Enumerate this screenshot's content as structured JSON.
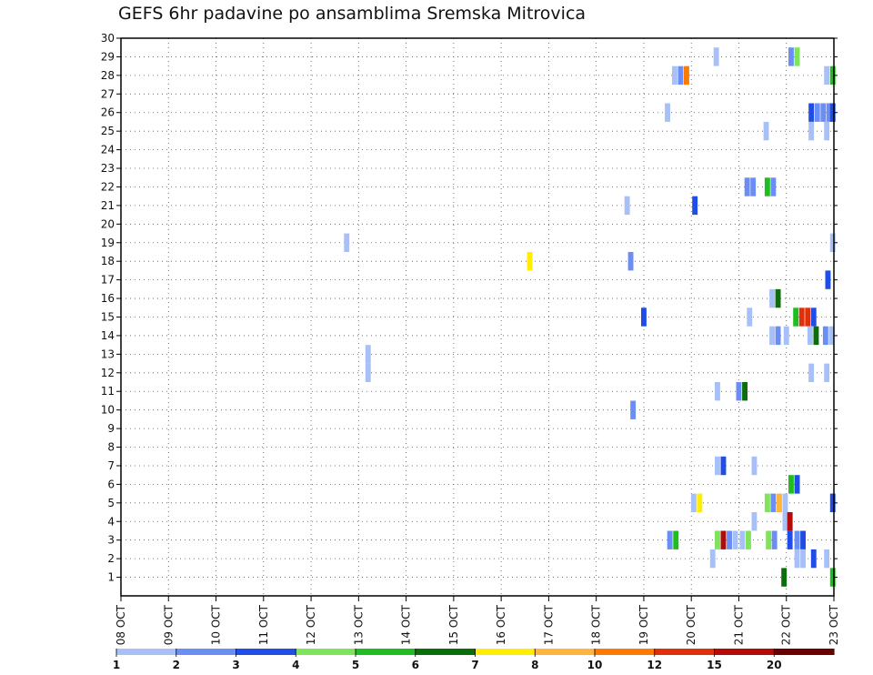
{
  "chart_data": {
    "type": "heatmap",
    "title": "GEFS 6hr padavine po ansamblima Sremska Mitrovica",
    "xlabel": "",
    "ylabel": "",
    "x_tick_labels": [
      "08 OCT",
      "09 OCT",
      "10 OCT",
      "11 OCT",
      "12 OCT",
      "13 OCT",
      "14 OCT",
      "15 OCT",
      "16 OCT",
      "17 OCT",
      "18 OCT",
      "19 OCT",
      "20 OCT",
      "21 OCT",
      "22 OCT",
      "23 OCT"
    ],
    "y_tick_labels": [
      "1",
      "2",
      "3",
      "4",
      "5",
      "6",
      "7",
      "8",
      "9",
      "10",
      "11",
      "12",
      "13",
      "14",
      "15",
      "16",
      "17",
      "18",
      "19",
      "20",
      "21",
      "22",
      "23",
      "24",
      "25",
      "26",
      "27",
      "28",
      "29",
      "30"
    ],
    "xlim": [
      0,
      60
    ],
    "ylim": [
      0,
      30
    ],
    "x_unit": "6-hour step since 08 OCT 00z",
    "grid": true,
    "legend_position": "bottom",
    "colorbar": {
      "labels": [
        "1",
        "2",
        "3",
        "4",
        "5",
        "6",
        "7",
        "8",
        "10",
        "12",
        "15",
        "20"
      ],
      "colors": [
        "#a8c0f8",
        "#6b8ef5",
        "#1f4de6",
        "#7fe35c",
        "#1fbd1f",
        "#0a6e0a",
        "#ffee00",
        "#ffb43c",
        "#ff7a00",
        "#e0300a",
        "#b30a0a",
        "#6b0000"
      ]
    },
    "cells": [
      {
        "x": 50.1,
        "y": 29,
        "level": 1
      },
      {
        "x": 56.4,
        "y": 29,
        "level": 2
      },
      {
        "x": 56.9,
        "y": 29,
        "level": 4
      },
      {
        "x": 46.6,
        "y": 28,
        "level": 1
      },
      {
        "x": 47.1,
        "y": 28,
        "level": 2
      },
      {
        "x": 47.6,
        "y": 28,
        "level": 10
      },
      {
        "x": 59.4,
        "y": 28,
        "level": 1
      },
      {
        "x": 59.9,
        "y": 28,
        "level": 5
      },
      {
        "x": 46.0,
        "y": 26,
        "level": 1
      },
      {
        "x": 58.1,
        "y": 26,
        "level": 3
      },
      {
        "x": 58.6,
        "y": 26,
        "level": 2
      },
      {
        "x": 59.1,
        "y": 26,
        "level": 2
      },
      {
        "x": 59.6,
        "y": 26,
        "level": 2
      },
      {
        "x": 59.9,
        "y": 26,
        "level": 3
      },
      {
        "x": 54.3,
        "y": 25,
        "level": 1
      },
      {
        "x": 58.1,
        "y": 25,
        "level": 1
      },
      {
        "x": 59.4,
        "y": 25,
        "level": 1
      },
      {
        "x": 52.7,
        "y": 22,
        "level": 2
      },
      {
        "x": 53.2,
        "y": 22,
        "level": 2
      },
      {
        "x": 54.4,
        "y": 22,
        "level": 5
      },
      {
        "x": 54.9,
        "y": 22,
        "level": 2
      },
      {
        "x": 48.3,
        "y": 21,
        "level": 3
      },
      {
        "x": 42.6,
        "y": 21,
        "level": 1
      },
      {
        "x": 19.0,
        "y": 19,
        "level": 1
      },
      {
        "x": 59.9,
        "y": 19,
        "level": 1
      },
      {
        "x": 34.4,
        "y": 18,
        "level": 7
      },
      {
        "x": 42.9,
        "y": 18,
        "level": 2
      },
      {
        "x": 59.5,
        "y": 17,
        "level": 3
      },
      {
        "x": 54.8,
        "y": 16,
        "level": 1
      },
      {
        "x": 55.3,
        "y": 16,
        "level": 6
      },
      {
        "x": 44.0,
        "y": 15,
        "level": 3
      },
      {
        "x": 52.9,
        "y": 15,
        "level": 1
      },
      {
        "x": 56.8,
        "y": 15,
        "level": 5
      },
      {
        "x": 57.3,
        "y": 15,
        "level": 12
      },
      {
        "x": 57.8,
        "y": 15,
        "level": 12
      },
      {
        "x": 58.3,
        "y": 15,
        "level": 3
      },
      {
        "x": 54.8,
        "y": 14,
        "level": 1
      },
      {
        "x": 55.3,
        "y": 14,
        "level": 2
      },
      {
        "x": 56.0,
        "y": 14,
        "level": 1
      },
      {
        "x": 58.0,
        "y": 14,
        "level": 1
      },
      {
        "x": 58.5,
        "y": 14,
        "level": 6
      },
      {
        "x": 59.3,
        "y": 14,
        "level": 2
      },
      {
        "x": 59.8,
        "y": 14,
        "level": 1
      },
      {
        "x": 20.8,
        "y": 13,
        "level": 1
      },
      {
        "x": 20.8,
        "y": 12,
        "level": 1
      },
      {
        "x": 58.1,
        "y": 12,
        "level": 1
      },
      {
        "x": 59.4,
        "y": 12,
        "level": 1
      },
      {
        "x": 50.2,
        "y": 11,
        "level": 1
      },
      {
        "x": 52.0,
        "y": 11,
        "level": 2
      },
      {
        "x": 52.5,
        "y": 11,
        "level": 6
      },
      {
        "x": 43.1,
        "y": 10,
        "level": 2
      },
      {
        "x": 50.2,
        "y": 7,
        "level": 1
      },
      {
        "x": 50.7,
        "y": 7,
        "level": 3
      },
      {
        "x": 53.3,
        "y": 7,
        "level": 1
      },
      {
        "x": 56.4,
        "y": 6,
        "level": 5
      },
      {
        "x": 56.9,
        "y": 6,
        "level": 3
      },
      {
        "x": 48.2,
        "y": 5,
        "level": 1
      },
      {
        "x": 48.7,
        "y": 5,
        "level": 7
      },
      {
        "x": 54.4,
        "y": 5,
        "level": 4
      },
      {
        "x": 54.9,
        "y": 5,
        "level": 2
      },
      {
        "x": 55.4,
        "y": 5,
        "level": 8
      },
      {
        "x": 55.9,
        "y": 5,
        "level": 1
      },
      {
        "x": 59.9,
        "y": 5,
        "level": 3
      },
      {
        "x": 53.3,
        "y": 4,
        "level": 1
      },
      {
        "x": 55.9,
        "y": 4,
        "level": 1
      },
      {
        "x": 56.3,
        "y": 4,
        "level": 15
      },
      {
        "x": 46.2,
        "y": 3,
        "level": 2
      },
      {
        "x": 46.7,
        "y": 3,
        "level": 5
      },
      {
        "x": 50.2,
        "y": 3,
        "level": 4
      },
      {
        "x": 50.7,
        "y": 3,
        "level": 15
      },
      {
        "x": 51.2,
        "y": 3,
        "level": 2
      },
      {
        "x": 51.7,
        "y": 3,
        "level": 1
      },
      {
        "x": 52.3,
        "y": 3,
        "level": 1
      },
      {
        "x": 52.8,
        "y": 3,
        "level": 4
      },
      {
        "x": 54.5,
        "y": 3,
        "level": 4
      },
      {
        "x": 55.0,
        "y": 3,
        "level": 2
      },
      {
        "x": 56.3,
        "y": 3,
        "level": 3
      },
      {
        "x": 56.9,
        "y": 3,
        "level": 2
      },
      {
        "x": 57.4,
        "y": 3,
        "level": 3
      },
      {
        "x": 56.9,
        "y": 2,
        "level": 1
      },
      {
        "x": 57.4,
        "y": 2,
        "level": 1
      },
      {
        "x": 59.4,
        "y": 2,
        "level": 1
      },
      {
        "x": 49.8,
        "y": 2,
        "level": 1
      },
      {
        "x": 58.3,
        "y": 2,
        "level": 3
      },
      {
        "x": 55.8,
        "y": 1,
        "level": 6
      },
      {
        "x": 59.9,
        "y": 1,
        "level": 5
      }
    ]
  }
}
